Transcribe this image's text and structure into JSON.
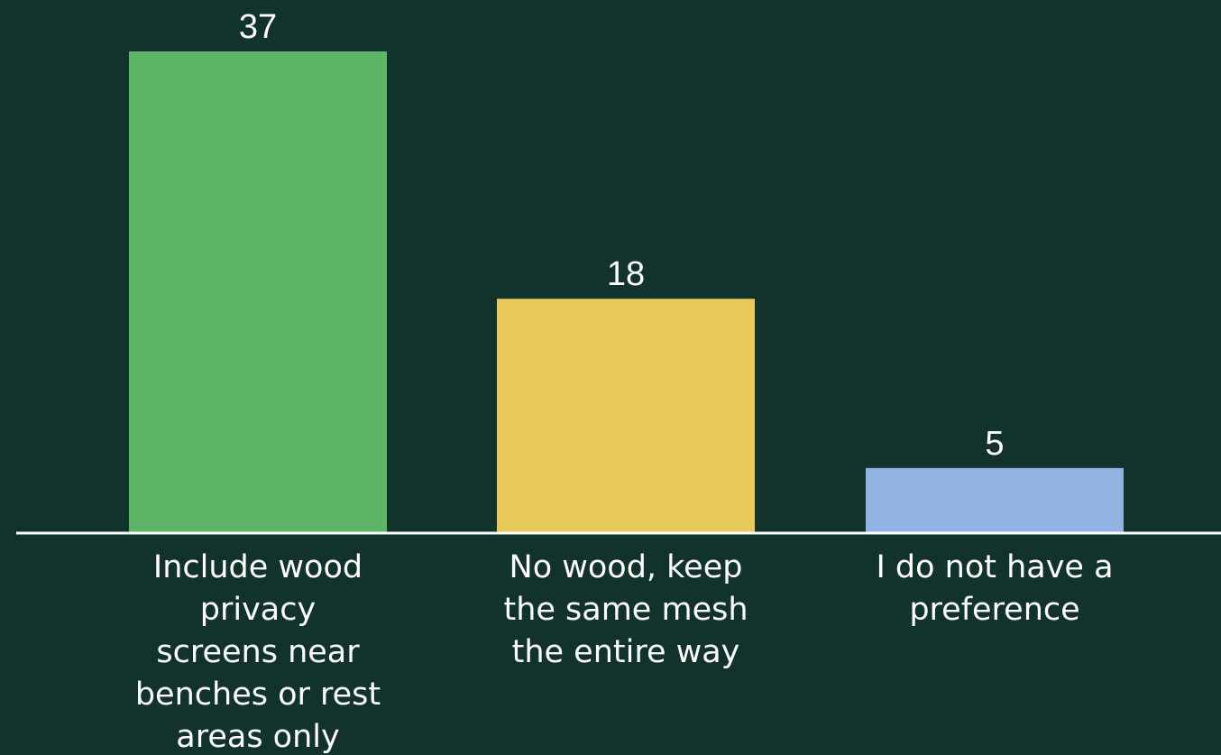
{
  "chart_data": {
    "type": "bar",
    "categories": [
      "Include wood privacy screens near benches or rest areas only",
      "No wood, keep the same mesh the entire way",
      "I do not have a preference"
    ],
    "category_label_lines": [
      [
        "Include wood",
        "privacy",
        "screens near",
        "benches or rest",
        "areas only"
      ],
      [
        "No wood, keep",
        "the same mesh",
        "the entire way"
      ],
      [
        "I do not have a",
        "preference"
      ]
    ],
    "values": [
      37,
      18,
      5
    ],
    "value_labels": [
      "37",
      "18",
      "5"
    ],
    "colors": [
      "#5db665",
      "#e8c95a",
      "#92b2e2"
    ],
    "title": "",
    "xlabel": "",
    "ylabel": "",
    "ylim": [
      0,
      37
    ],
    "grid": false,
    "legend": "none",
    "background_color": "#11332b",
    "axis_color": "#ffffff",
    "text_color": "#ffffff"
  }
}
